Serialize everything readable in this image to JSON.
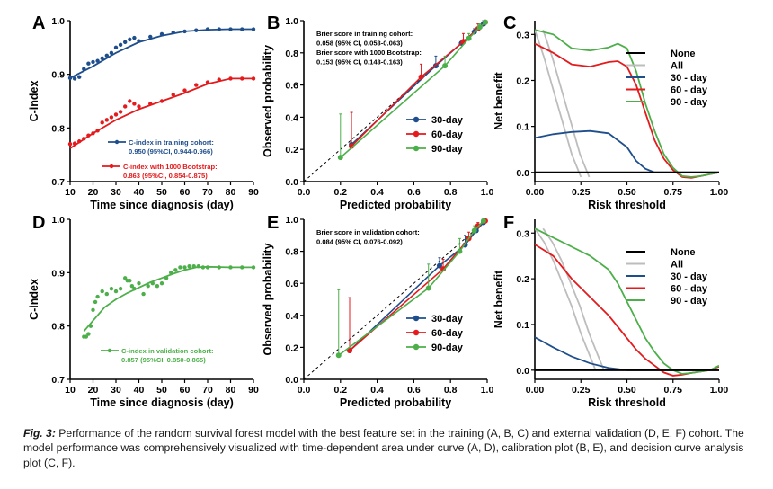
{
  "caption": {
    "label": "Fig. 3:",
    "text": "Performance of the random survival forest model with the best feature set in the training (A, B, C) and external validation (D, E, F) cohort. The model performance was comprehensively visualized with time-dependent area under curve (A, D), calibration plot (B, E), and decision curve analysis plot (C, F)."
  },
  "colors": {
    "blue": "#1f4e8c",
    "red": "#e41a1c",
    "green": "#4daf4a",
    "grey": "#bdbdbd",
    "black": "#000000"
  },
  "chart_data": [
    {
      "panel": "A",
      "type": "scatter",
      "xlabel": "Time since diagnosis (day)",
      "ylabel": "C-index",
      "xlim": [
        10,
        90
      ],
      "ylim": [
        0.7,
        1.0
      ],
      "xticks": [
        "10",
        "20",
        "30",
        "40",
        "50",
        "60",
        "70",
        "80",
        "90"
      ],
      "yticks": [
        "0.7",
        "0.8",
        "0.9",
        "1.0"
      ],
      "series": [
        {
          "color": "blue",
          "x": [
            10,
            12,
            14,
            16,
            18,
            20,
            22,
            24,
            26,
            28,
            30,
            32,
            34,
            36,
            38,
            40,
            45,
            50,
            55,
            60,
            65,
            70,
            75,
            80,
            85,
            90
          ],
          "y": [
            0.893,
            0.892,
            0.895,
            0.91,
            0.92,
            0.923,
            0.925,
            0.93,
            0.935,
            0.94,
            0.95,
            0.955,
            0.96,
            0.965,
            0.968,
            0.962,
            0.97,
            0.975,
            0.978,
            0.98,
            0.982,
            0.984,
            0.984,
            0.984,
            0.984,
            0.984
          ],
          "trend_x": [
            10,
            20,
            30,
            40,
            50,
            60,
            70,
            80,
            90
          ],
          "trend_y": [
            0.893,
            0.915,
            0.94,
            0.96,
            0.972,
            0.98,
            0.983,
            0.984,
            0.984
          ]
        },
        {
          "color": "red",
          "x": [
            10,
            12,
            14,
            16,
            18,
            20,
            22,
            24,
            26,
            28,
            30,
            32,
            34,
            36,
            38,
            40,
            45,
            50,
            55,
            60,
            65,
            70,
            75,
            80,
            85,
            90
          ],
          "y": [
            0.77,
            0.771,
            0.775,
            0.78,
            0.786,
            0.79,
            0.795,
            0.81,
            0.815,
            0.82,
            0.825,
            0.83,
            0.84,
            0.85,
            0.845,
            0.84,
            0.845,
            0.85,
            0.862,
            0.87,
            0.88,
            0.885,
            0.89,
            0.892,
            0.892,
            0.892
          ],
          "trend_x": [
            10,
            20,
            30,
            40,
            50,
            60,
            70,
            80,
            90
          ],
          "trend_y": [
            0.762,
            0.79,
            0.815,
            0.835,
            0.85,
            0.865,
            0.882,
            0.892,
            0.892
          ]
        }
      ],
      "legend": [
        {
          "color": "blue",
          "line1": "C-index in training cohort:",
          "line2": "0.950 (95%CI, 0.944-0.966)"
        },
        {
          "color": "red",
          "line1": "C-index with 1000 Bootstrap:",
          "line2": "0.863 (95%CI, 0.854-0.875)"
        }
      ]
    },
    {
      "panel": "B",
      "type": "line",
      "xlabel": "Predicted probability",
      "ylabel": "Observed probability",
      "xlim": [
        0,
        1
      ],
      "ylim": [
        0,
        1
      ],
      "xticks": [
        "0.0",
        "0.2",
        "0.4",
        "0.6",
        "0.8",
        "1.0"
      ],
      "yticks": [
        "0.0",
        "0.2",
        "0.4",
        "0.6",
        "0.8",
        "1.0"
      ],
      "annotations": [
        "Brier score in training cohort:",
        "0.058 (95% CI, 0.053-0.063)",
        "Brier score  with 1000 Bootstrap:",
        "0.153 (95% CI, 0.143-0.163)"
      ],
      "series": [
        {
          "name": "30-day",
          "color": "blue",
          "x": [
            0.26,
            0.72,
            0.86,
            0.93,
            0.98
          ],
          "y": [
            0.23,
            0.72,
            0.86,
            0.93,
            0.98
          ],
          "err_hi": [
            0.43,
            0.78,
            0.88,
            0.95,
            1.0
          ]
        },
        {
          "name": "60-day",
          "color": "red",
          "x": [
            0.26,
            0.64,
            0.87,
            0.95,
            0.99
          ],
          "y": [
            0.22,
            0.65,
            0.87,
            0.95,
            0.99
          ],
          "err_hi": [
            0.43,
            0.73,
            0.92,
            0.98,
            1.0
          ]
        },
        {
          "name": "90-day",
          "color": "green",
          "x": [
            0.2,
            0.77,
            0.9,
            0.96,
            0.99
          ],
          "y": [
            0.15,
            0.72,
            0.89,
            0.96,
            0.99
          ],
          "err_hi": [
            0.42,
            0.78,
            0.92,
            0.98,
            1.0
          ]
        }
      ]
    },
    {
      "panel": "C",
      "type": "line",
      "xlabel": "Risk threshold",
      "ylabel": "Net benefit",
      "xlim": [
        0,
        1
      ],
      "ylim": [
        -0.02,
        0.33
      ],
      "xticks": [
        "0.00",
        "0.25",
        "0.50",
        "0.75",
        "1.00"
      ],
      "yticks": [
        "0.0",
        "0.1",
        "0.2",
        "0.3"
      ],
      "series": [
        {
          "name": "None",
          "color": "black",
          "x": [
            0,
            1
          ],
          "y": [
            0,
            0
          ]
        },
        {
          "name": "All",
          "color": "grey",
          "x": [
            0,
            0.05,
            0.1,
            0.15,
            0.2,
            0.25
          ],
          "y": [
            0.31,
            0.25,
            0.18,
            0.11,
            0.04,
            -0.01
          ]
        },
        {
          "name": "30 - day",
          "color": "blue",
          "x": [
            0,
            0.1,
            0.2,
            0.3,
            0.4,
            0.5,
            0.55,
            0.6,
            0.65,
            1.0
          ],
          "y": [
            0.075,
            0.083,
            0.088,
            0.09,
            0.085,
            0.055,
            0.025,
            0.008,
            0.0,
            0.0
          ]
        },
        {
          "name": "60 - day",
          "color": "red",
          "x": [
            0,
            0.1,
            0.2,
            0.3,
            0.4,
            0.45,
            0.5,
            0.55,
            0.6,
            0.65,
            0.7,
            0.75,
            0.8,
            0.85,
            0.9,
            0.95,
            1.0
          ],
          "y": [
            0.28,
            0.26,
            0.235,
            0.23,
            0.24,
            0.242,
            0.23,
            0.19,
            0.13,
            0.07,
            0.03,
            0.005,
            -0.01,
            -0.012,
            -0.008,
            -0.004,
            0.0
          ]
        },
        {
          "name": "90 - day",
          "color": "green",
          "x": [
            0,
            0.1,
            0.2,
            0.3,
            0.4,
            0.45,
            0.5,
            0.55,
            0.6,
            0.65,
            0.7,
            0.75,
            0.8,
            0.85,
            0.9,
            0.95,
            1.0
          ],
          "y": [
            0.31,
            0.3,
            0.27,
            0.265,
            0.272,
            0.28,
            0.27,
            0.22,
            0.15,
            0.09,
            0.04,
            0.01,
            -0.008,
            -0.01,
            -0.008,
            -0.004,
            0.0
          ]
        }
      ]
    },
    {
      "panel": "D",
      "type": "scatter",
      "xlabel": "Time since diagnosis (day)",
      "ylabel": "C-index",
      "xlim": [
        10,
        90
      ],
      "ylim": [
        0.7,
        1.0
      ],
      "xticks": [
        "10",
        "20",
        "30",
        "40",
        "50",
        "60",
        "70",
        "80",
        "90"
      ],
      "yticks": [
        "0.7",
        "0.8",
        "0.9",
        "1.0"
      ],
      "series": [
        {
          "color": "green",
          "x": [
            16,
            17,
            18,
            19,
            20,
            21,
            22,
            24,
            26,
            28,
            30,
            32,
            34,
            35,
            36,
            37,
            38,
            40,
            42,
            44,
            46,
            48,
            50,
            52,
            54,
            56,
            58,
            60,
            62,
            64,
            66,
            68,
            70,
            75,
            80,
            85,
            90
          ],
          "y": [
            0.78,
            0.78,
            0.785,
            0.8,
            0.83,
            0.845,
            0.855,
            0.865,
            0.86,
            0.87,
            0.865,
            0.87,
            0.89,
            0.885,
            0.885,
            0.875,
            0.87,
            0.88,
            0.86,
            0.875,
            0.88,
            0.875,
            0.88,
            0.89,
            0.9,
            0.905,
            0.91,
            0.91,
            0.912,
            0.912,
            0.912,
            0.91,
            0.91,
            0.91,
            0.91,
            0.91,
            0.91
          ],
          "trend_x": [
            16,
            20,
            25,
            30,
            35,
            40,
            45,
            50,
            55,
            60,
            65,
            70,
            80,
            90
          ],
          "trend_y": [
            0.79,
            0.81,
            0.835,
            0.85,
            0.862,
            0.872,
            0.882,
            0.89,
            0.898,
            0.905,
            0.91,
            0.911,
            0.91,
            0.91
          ]
        }
      ],
      "legend": [
        {
          "color": "green",
          "line1": "C-index in validation cohort:",
          "line2": "0.857 (95%CI, 0.850-0.865)"
        }
      ]
    },
    {
      "panel": "E",
      "type": "line",
      "xlabel": "Predicted probability",
      "ylabel": "Observed probability",
      "xlim": [
        0,
        1
      ],
      "ylim": [
        0,
        1
      ],
      "xticks": [
        "0.0",
        "0.2",
        "0.4",
        "0.6",
        "0.8",
        "1.0"
      ],
      "yticks": [
        "0.0",
        "0.2",
        "0.4",
        "0.6",
        "0.8",
        "1.0"
      ],
      "annotations": [
        "Brier score in validation cohort:",
        "0.084 (95% CI, 0.076-0.092)"
      ],
      "series": [
        {
          "name": "30-day",
          "color": "blue",
          "x": [
            0.25,
            0.74,
            0.88,
            0.94,
            0.98
          ],
          "y": [
            0.18,
            0.71,
            0.84,
            0.93,
            0.98
          ],
          "err_hi": [
            0.51,
            0.76,
            0.9,
            0.96,
            1.0
          ]
        },
        {
          "name": "60-day",
          "color": "red",
          "x": [
            0.25,
            0.76,
            0.9,
            0.95,
            0.99
          ],
          "y": [
            0.18,
            0.69,
            0.88,
            0.96,
            0.99
          ],
          "err_hi": [
            0.51,
            0.75,
            0.92,
            0.98,
            1.0
          ]
        },
        {
          "name": "90-day",
          "color": "green",
          "x": [
            0.19,
            0.68,
            0.85,
            0.93,
            0.98
          ],
          "y": [
            0.15,
            0.57,
            0.8,
            0.93,
            0.99
          ],
          "err_hi": [
            0.56,
            0.72,
            0.88,
            0.96,
            1.0
          ]
        }
      ]
    },
    {
      "panel": "F",
      "type": "line",
      "xlabel": "Risk threshold",
      "ylabel": "Net benefit",
      "xlim": [
        0,
        1
      ],
      "ylim": [
        -0.02,
        0.33
      ],
      "xticks": [
        "0.00",
        "0.25",
        "0.50",
        "0.75",
        "1.00"
      ],
      "yticks": [
        "0.0",
        "0.1",
        "0.2",
        "0.3"
      ],
      "series": [
        {
          "name": "None",
          "color": "black",
          "x": [
            0,
            1
          ],
          "y": [
            0,
            0
          ]
        },
        {
          "name": "All",
          "color": "grey",
          "x": [
            0,
            0.05,
            0.1,
            0.15,
            0.2,
            0.25,
            0.3,
            0.33
          ],
          "y": [
            0.31,
            0.28,
            0.24,
            0.19,
            0.14,
            0.08,
            0.03,
            0.0
          ]
        },
        {
          "name": "30 - day",
          "color": "blue",
          "x": [
            0,
            0.1,
            0.2,
            0.3,
            0.4,
            0.5,
            0.6,
            1.0
          ],
          "y": [
            0.072,
            0.05,
            0.03,
            0.015,
            0.005,
            0.0,
            0.0,
            0.0
          ]
        },
        {
          "name": "60 - day",
          "color": "red",
          "x": [
            0,
            0.1,
            0.2,
            0.3,
            0.4,
            0.45,
            0.5,
            0.55,
            0.6,
            0.65,
            0.7,
            0.75,
            0.8,
            0.85,
            0.9,
            0.95,
            1.0
          ],
          "y": [
            0.275,
            0.25,
            0.2,
            0.16,
            0.12,
            0.095,
            0.07,
            0.045,
            0.025,
            0.01,
            -0.005,
            -0.012,
            -0.01,
            -0.006,
            -0.003,
            0.0,
            0.008
          ]
        },
        {
          "name": "90 - day",
          "color": "green",
          "x": [
            0,
            0.1,
            0.2,
            0.3,
            0.4,
            0.45,
            0.5,
            0.55,
            0.6,
            0.65,
            0.7,
            0.75,
            0.8,
            0.85,
            0.9,
            0.95,
            1.0
          ],
          "y": [
            0.31,
            0.29,
            0.27,
            0.25,
            0.22,
            0.19,
            0.15,
            0.11,
            0.07,
            0.04,
            0.015,
            0.0,
            -0.008,
            -0.006,
            -0.003,
            0.0,
            0.01
          ]
        }
      ]
    }
  ]
}
